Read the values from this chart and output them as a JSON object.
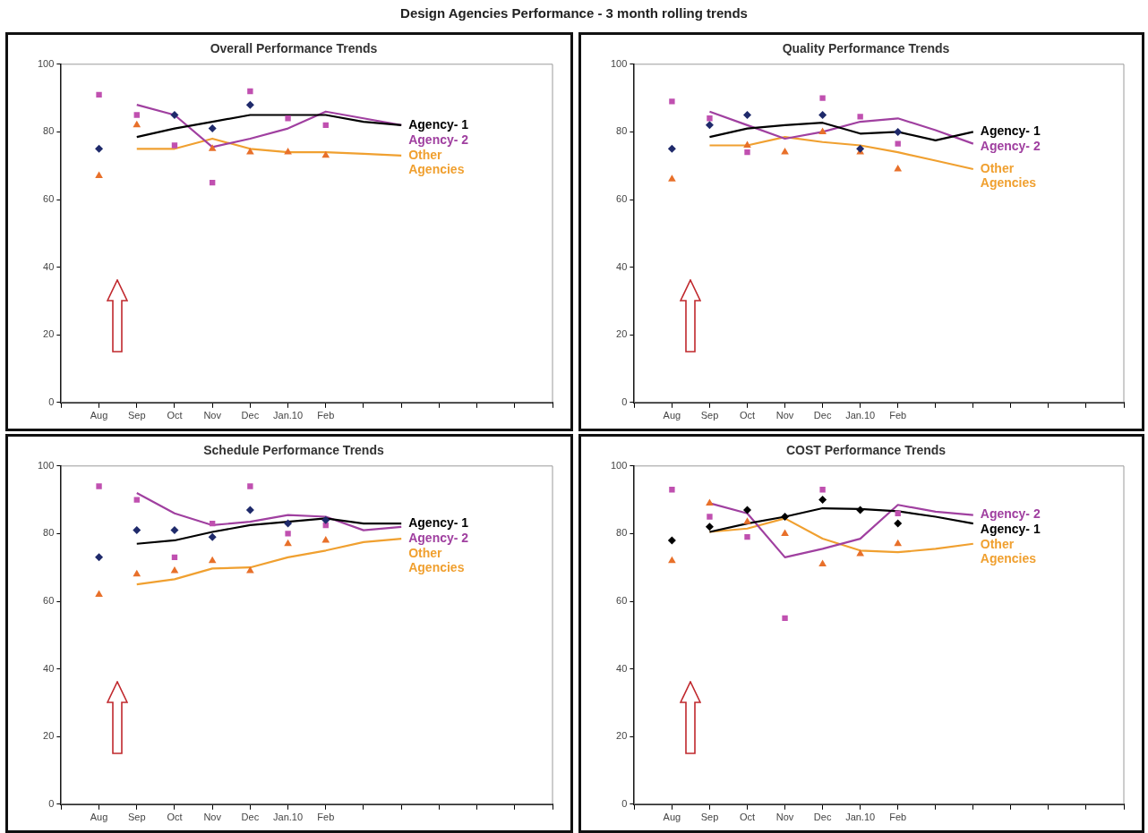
{
  "chart_data": [
    {
      "type": "line",
      "title": "Overall Performance Trends",
      "annotations": [
        "Design Agencies Performance - 3 month rolling trends"
      ],
      "categories": [
        null,
        "Aug",
        "Sep",
        "Oct",
        "Nov",
        "Dec",
        "Jan.10",
        "Feb",
        null,
        null,
        null,
        null,
        null,
        null
      ],
      "ylim": [
        0,
        100
      ],
      "yticks": [
        0,
        20,
        40,
        60,
        80,
        100
      ],
      "grid": false,
      "legend": false,
      "series": [
        {
          "type": "scatter",
          "marker": "diamond",
          "color": "#1f2a6b",
          "values": [
            null,
            75,
            null,
            85,
            81,
            88,
            null,
            null,
            null,
            null,
            null,
            null,
            null,
            null
          ]
        },
        {
          "type": "scatter",
          "marker": "square",
          "color": "#c050b0",
          "values": [
            null,
            91,
            85,
            76,
            65,
            92,
            84,
            82,
            null,
            null,
            null,
            null,
            null,
            null
          ]
        },
        {
          "type": "scatter",
          "marker": "triangle",
          "color": "#e8702a",
          "values": [
            null,
            67,
            82,
            null,
            75,
            74,
            74,
            73,
            null,
            null,
            null,
            null,
            null,
            null
          ]
        },
        {
          "type": "line",
          "name": "Agency- 1",
          "marker": "none",
          "color": "#000000",
          "values": [
            null,
            null,
            78.5,
            81,
            83,
            85,
            85,
            85,
            83,
            82,
            null,
            null,
            null,
            null
          ]
        },
        {
          "type": "line",
          "name": "Agency- 2",
          "marker": "none",
          "color": "#a040a0",
          "values": [
            null,
            null,
            88,
            85,
            75.5,
            78,
            81,
            86,
            84,
            82,
            null,
            null,
            null,
            null
          ]
        },
        {
          "type": "line",
          "name": "Other Agencies",
          "marker": "none",
          "color": "#f0a030",
          "values": [
            null,
            null,
            75,
            75,
            78,
            75,
            74,
            74,
            73.5,
            73,
            null,
            null,
            null,
            null
          ]
        }
      ]
    },
    {
      "type": "line",
      "title": "Quality Performance Trends",
      "categories": [
        null,
        "Aug",
        "Sep",
        "Oct",
        "Nov",
        "Dec",
        "Jan.10",
        "Feb",
        null,
        null,
        null,
        null,
        null,
        null
      ],
      "ylim": [
        0,
        100
      ],
      "yticks": [
        0,
        20,
        40,
        60,
        80,
        100
      ],
      "grid": false,
      "legend": false,
      "series": [
        {
          "type": "scatter",
          "marker": "diamond",
          "color": "#1f2a6b",
          "values": [
            null,
            75,
            82,
            85,
            null,
            85,
            75,
            80,
            null,
            null,
            null,
            null,
            null,
            null
          ]
        },
        {
          "type": "scatter",
          "marker": "square",
          "color": "#c050b0",
          "values": [
            null,
            89,
            84,
            74,
            null,
            90,
            84.5,
            76.5,
            null,
            null,
            null,
            null,
            null,
            null
          ]
        },
        {
          "type": "scatter",
          "marker": "triangle",
          "color": "#e8702a",
          "values": [
            null,
            66,
            null,
            76,
            74,
            80,
            74,
            69,
            null,
            null,
            null,
            null,
            null,
            null
          ]
        },
        {
          "type": "line",
          "name": "Agency- 1",
          "marker": "none",
          "color": "#000000",
          "values": [
            null,
            null,
            78.5,
            81,
            82,
            82.7,
            79.5,
            80,
            77.5,
            80,
            null,
            null,
            null,
            null
          ]
        },
        {
          "type": "line",
          "name": "Agency- 2",
          "marker": "none",
          "color": "#a040a0",
          "values": [
            null,
            null,
            86,
            82,
            78,
            80,
            83,
            84,
            80.5,
            76.5,
            null,
            null,
            null,
            null
          ]
        },
        {
          "type": "line",
          "name": "Other Agencies",
          "marker": "none",
          "color": "#f0a030",
          "values": [
            null,
            null,
            76,
            76,
            78.5,
            77,
            76,
            74,
            71.5,
            69,
            null,
            null,
            null,
            null
          ]
        }
      ]
    },
    {
      "type": "line",
      "title": "Schedule Performance Trends",
      "categories": [
        null,
        "Aug",
        "Sep",
        "Oct",
        "Nov",
        "Dec",
        "Jan.10",
        "Feb",
        null,
        null,
        null,
        null,
        null,
        null
      ],
      "ylim": [
        0,
        100
      ],
      "yticks": [
        0,
        20,
        40,
        60,
        80,
        100
      ],
      "grid": false,
      "legend": false,
      "series": [
        {
          "type": "scatter",
          "marker": "diamond",
          "color": "#1f2a6b",
          "values": [
            null,
            73,
            81,
            81,
            79,
            87,
            83,
            84,
            null,
            null,
            null,
            null,
            null,
            null
          ]
        },
        {
          "type": "scatter",
          "marker": "square",
          "color": "#c050b0",
          "values": [
            null,
            94,
            90,
            73,
            83,
            94,
            80,
            82.5,
            null,
            null,
            null,
            null,
            null,
            null
          ]
        },
        {
          "type": "scatter",
          "marker": "triangle",
          "color": "#e8702a",
          "values": [
            null,
            62,
            68,
            69,
            72,
            69,
            77,
            78,
            null,
            null,
            null,
            null,
            null,
            null
          ]
        },
        {
          "type": "line",
          "name": "Agency- 1",
          "marker": "none",
          "color": "#000000",
          "values": [
            null,
            null,
            77,
            78,
            80.5,
            82.5,
            83.5,
            84.5,
            83,
            83,
            null,
            null,
            null,
            null
          ]
        },
        {
          "type": "line",
          "name": "Agency- 2",
          "marker": "none",
          "color": "#a040a0",
          "values": [
            null,
            null,
            92,
            86,
            82.5,
            83.5,
            85.5,
            85,
            81,
            82,
            null,
            null,
            null,
            null
          ]
        },
        {
          "type": "line",
          "name": "Other Agencies",
          "marker": "none",
          "color": "#f0a030",
          "values": [
            null,
            null,
            65,
            66.5,
            69.7,
            70,
            73,
            75,
            77.5,
            78.5,
            null,
            null,
            null,
            null
          ]
        }
      ]
    },
    {
      "type": "line",
      "title": "COST Performance Trends",
      "categories": [
        null,
        "Aug",
        "Sep",
        "Oct",
        "Nov",
        "Dec",
        "Jan.10",
        "Feb",
        null,
        null,
        null,
        null,
        null,
        null
      ],
      "ylim": [
        0,
        100
      ],
      "yticks": [
        0,
        20,
        40,
        60,
        80,
        100
      ],
      "grid": false,
      "legend": false,
      "series": [
        {
          "type": "scatter",
          "marker": "diamond",
          "color": "#000000",
          "values": [
            null,
            78,
            82,
            87,
            85,
            90,
            87,
            83,
            null,
            null,
            null,
            null,
            null,
            null
          ]
        },
        {
          "type": "scatter",
          "marker": "square",
          "color": "#c050b0",
          "values": [
            null,
            93,
            85,
            79,
            55,
            93,
            null,
            86,
            null,
            null,
            null,
            null,
            null,
            null
          ]
        },
        {
          "type": "scatter",
          "marker": "triangle",
          "color": "#e8702a",
          "values": [
            null,
            72,
            89,
            83.5,
            80,
            71,
            74,
            77,
            null,
            null,
            null,
            null,
            null,
            null
          ]
        },
        {
          "type": "line",
          "name": "Agency- 1",
          "marker": "none",
          "color": "#000000",
          "values": [
            null,
            null,
            80.5,
            83,
            85,
            87.5,
            87.3,
            86.6,
            85,
            83,
            null,
            null,
            null,
            null
          ]
        },
        {
          "type": "line",
          "name": "Agency- 2",
          "marker": "none",
          "color": "#a040a0",
          "values": [
            null,
            null,
            89,
            86,
            73,
            75.5,
            78.5,
            88.5,
            86.5,
            85.5,
            null,
            null,
            null,
            null
          ]
        },
        {
          "type": "line",
          "name": "Other Agencies",
          "marker": "none",
          "color": "#f0a030",
          "values": [
            null,
            null,
            80.5,
            81.5,
            84.5,
            78.5,
            75,
            74.5,
            75.5,
            77,
            null,
            null,
            null,
            null
          ]
        }
      ]
    }
  ]
}
